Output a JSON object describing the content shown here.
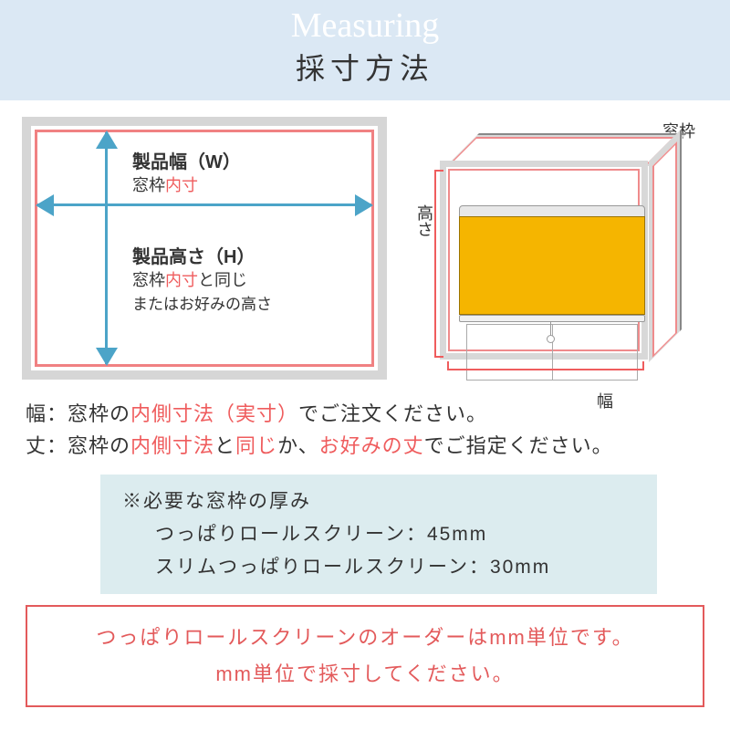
{
  "header": {
    "script": "Measuring",
    "title": "採寸方法"
  },
  "left_diagram": {
    "w_title": "製品幅（W）",
    "w_sub_pre": "窓枠",
    "w_sub_red": "内寸",
    "h_title": "製品高さ（H）",
    "h_sub_pre": "窓枠",
    "h_sub_red": "内寸",
    "h_sub_post": "と同じ",
    "h_sub2": "またはお好みの高さ",
    "colors": {
      "outer_border": "#d6d6d6",
      "inner_border": "#f08182",
      "arrow": "#4ca4c8"
    }
  },
  "right_diagram": {
    "madowaku": "窓枠",
    "takasa": "高さ",
    "haba": "幅",
    "screen_color": "#f5b500"
  },
  "description": {
    "line1_pre": "幅：窓枠の",
    "line1_red": "内側寸法（実寸）",
    "line1_post": "でご注文ください。",
    "line2_pre": "丈：窓枠の",
    "line2_red1": "内側寸法",
    "line2_mid1": "と",
    "line2_red2": "同じ",
    "line2_mid2": "か、",
    "line2_red3": "お好みの丈",
    "line2_post": "でご指定ください。"
  },
  "thickness": {
    "title": "※必要な窓枠の厚み",
    "line1": "つっぱりロールスクリーン：45mm",
    "line2": "スリムつっぱりロールスクリーン：30mm",
    "bg": "#dcecef"
  },
  "notice": {
    "line1": "つっぱりロールスクリーンのオーダーはmm単位です。",
    "line2": "mm単位で採寸してください。",
    "border": "#e35a5b"
  }
}
